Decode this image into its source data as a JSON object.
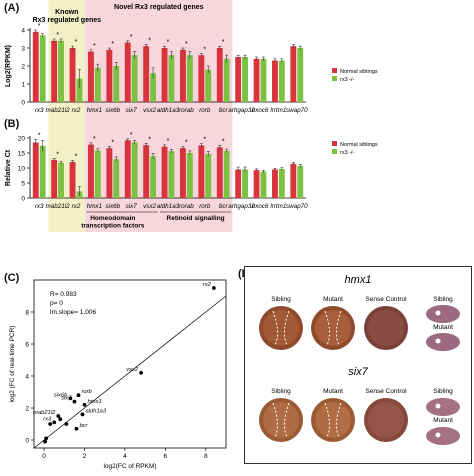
{
  "colors": {
    "normal": "#d9343e",
    "mutant": "#7cc242",
    "known_bg": "#f3f0c8",
    "novel_bg": "#f7d6dc",
    "grid": "#cccccc"
  },
  "genes": [
    "rx3",
    "mab21l2",
    "rx2",
    "hmx1",
    "six6b",
    "six7",
    "vsx2",
    "aldh1a3",
    "rorab",
    "rorb",
    "bcr",
    "arhgap32",
    "exoc6",
    "lrrtm1",
    "swap70"
  ],
  "panel_a": {
    "label": "(A)",
    "known_title": "Known\nRx3 regulated genes",
    "novel_title": "Novel Rx3 regulated genes",
    "legend": [
      "Normal siblings",
      "rx3 -/-"
    ]
  },
  "panel_b": {
    "label": "(B)",
    "legend": [
      "Normal siblings",
      "rx3 -/-"
    ],
    "group1": "Homeodomain\ntranscription factors",
    "group2": "Retinoid signalling"
  },
  "panel_c": {
    "label": "(C)",
    "stats": [
      "R= 0.983",
      "p= 0",
      "lm.slope= 1.006"
    ]
  },
  "panel_d": {
    "label": "(D)",
    "gene1": "hmx1",
    "gene2": "six7",
    "col_labels": [
      "Sibling",
      "Mutant",
      "Sense Control"
    ],
    "side_labels": [
      "Sibling",
      "Mutant"
    ]
  },
  "chart_data": [
    {
      "type": "bar",
      "title": "",
      "xlabel": "",
      "ylabel": "Log2(RPKM)",
      "ylim": [
        0,
        4
      ],
      "yticks": [
        0,
        1,
        2,
        3,
        4
      ],
      "categories": [
        "rx3",
        "mab21l2",
        "rx2",
        "hmx1",
        "six6b",
        "six7",
        "vsx2",
        "aldh1a3",
        "rorab",
        "rorb",
        "bcr",
        "arhgap32",
        "exoc6",
        "lrrtm1",
        "swap70"
      ],
      "series": [
        {
          "name": "Normal siblings",
          "values": [
            3.9,
            3.4,
            3.0,
            2.8,
            2.9,
            3.3,
            3.1,
            3.0,
            2.9,
            2.6,
            3.0,
            2.5,
            2.4,
            2.3,
            3.1
          ]
        },
        {
          "name": "rx3 -/-",
          "values": [
            3.7,
            3.4,
            1.3,
            1.9,
            2.0,
            2.6,
            1.6,
            2.6,
            2.6,
            1.8,
            2.4,
            2.5,
            2.4,
            2.3,
            3.0
          ]
        }
      ],
      "errors": [
        [
          0.1,
          0.1,
          0.1,
          0.1,
          0.1,
          0.1,
          0.1,
          0.1,
          0.1,
          0.1,
          0.1,
          0.1,
          0.1,
          0.1,
          0.1
        ],
        [
          0.1,
          0.1,
          0.5,
          0.2,
          0.2,
          0.2,
          0.3,
          0.2,
          0.2,
          0.2,
          0.2,
          0.1,
          0.1,
          0.1,
          0.1
        ]
      ],
      "significant": [
        "rx3",
        "mab21l2",
        "rx2",
        "hmx1",
        "six6b",
        "six7",
        "vsx2",
        "aldh1a3",
        "rorab",
        "rorb",
        "bcr"
      ]
    },
    {
      "type": "bar",
      "title": "",
      "xlabel": "",
      "ylabel": "Relative Ct",
      "ylim": [
        0,
        20
      ],
      "yticks": [
        0,
        5,
        10,
        15,
        20
      ],
      "categories": [
        "rx3",
        "mab21l2",
        "rx2",
        "hmx1",
        "six6b",
        "six7",
        "vsx2",
        "aldh1a3",
        "rorab",
        "rorb",
        "bcr",
        "arhgap32",
        "exoc6",
        "lrrtm1",
        "swap70"
      ],
      "series": [
        {
          "name": "Normal siblings",
          "values": [
            18.5,
            12.7,
            12.0,
            17.8,
            16.6,
            19.2,
            17.6,
            17.1,
            16.6,
            17.5,
            16.9,
            9.5,
            9.3,
            9.5,
            11.4
          ]
        },
        {
          "name": "rx3 -/-",
          "values": [
            17.4,
            11.7,
            2.2,
            15.8,
            12.9,
            18.5,
            13.9,
            15.6,
            15.0,
            14.7,
            15.7,
            9.5,
            8.8,
            9.7,
            10.7
          ]
        }
      ],
      "errors": [
        [
          1.0,
          0.5,
          0.5,
          0.6,
          0.6,
          0.5,
          0.6,
          0.6,
          0.5,
          0.6,
          0.6,
          0.8,
          0.4,
          0.4,
          0.5
        ],
        [
          1.8,
          0.5,
          1.6,
          0.6,
          0.8,
          0.6,
          0.9,
          0.6,
          0.7,
          0.8,
          0.6,
          0.8,
          0.4,
          0.4,
          0.5
        ]
      ],
      "significant": [
        "rx3",
        "mab21l2",
        "rx2",
        "hmx1",
        "six6b",
        "six7",
        "vsx2",
        "aldh1a3",
        "rorab",
        "rorb",
        "bcr"
      ]
    },
    {
      "type": "scatter",
      "title": "",
      "xlabel": "log2(FC of RPKM)",
      "ylabel": "log2 (FC of real-time PCR)",
      "xlim": [
        -0.5,
        9
      ],
      "ylim": [
        -0.5,
        10
      ],
      "xticks": [
        0,
        2,
        4,
        6,
        8
      ],
      "yticks": [
        0,
        2,
        4,
        6,
        8
      ],
      "points": [
        {
          "label": "rx2",
          "x": 8.4,
          "y": 9.5
        },
        {
          "label": "vsx2",
          "x": 4.8,
          "y": 4.2
        },
        {
          "label": "rorb",
          "x": 1.7,
          "y": 2.8
        },
        {
          "label": "hmx1",
          "x": 2.0,
          "y": 2.2
        },
        {
          "label": "six6b",
          "x": 1.3,
          "y": 2.6
        },
        {
          "label": "six7",
          "x": 1.5,
          "y": 2.4
        },
        {
          "label": "aldh1a3",
          "x": 1.9,
          "y": 1.6
        },
        {
          "label": "mab21l2",
          "x": 0.7,
          "y": 1.5
        },
        {
          "label": "rx3",
          "x": 0.5,
          "y": 1.1
        },
        {
          "label": "bcr",
          "x": 1.6,
          "y": 0.7
        },
        {
          "label": "",
          "x": 0.8,
          "y": 1.3
        },
        {
          "label": "",
          "x": 1.1,
          "y": 1.0
        },
        {
          "label": "",
          "x": 0.3,
          "y": 1.0
        },
        {
          "label": "",
          "x": 0.1,
          "y": 0.1
        },
        {
          "label": "",
          "x": 0.05,
          "y": -0.1
        }
      ]
    }
  ]
}
